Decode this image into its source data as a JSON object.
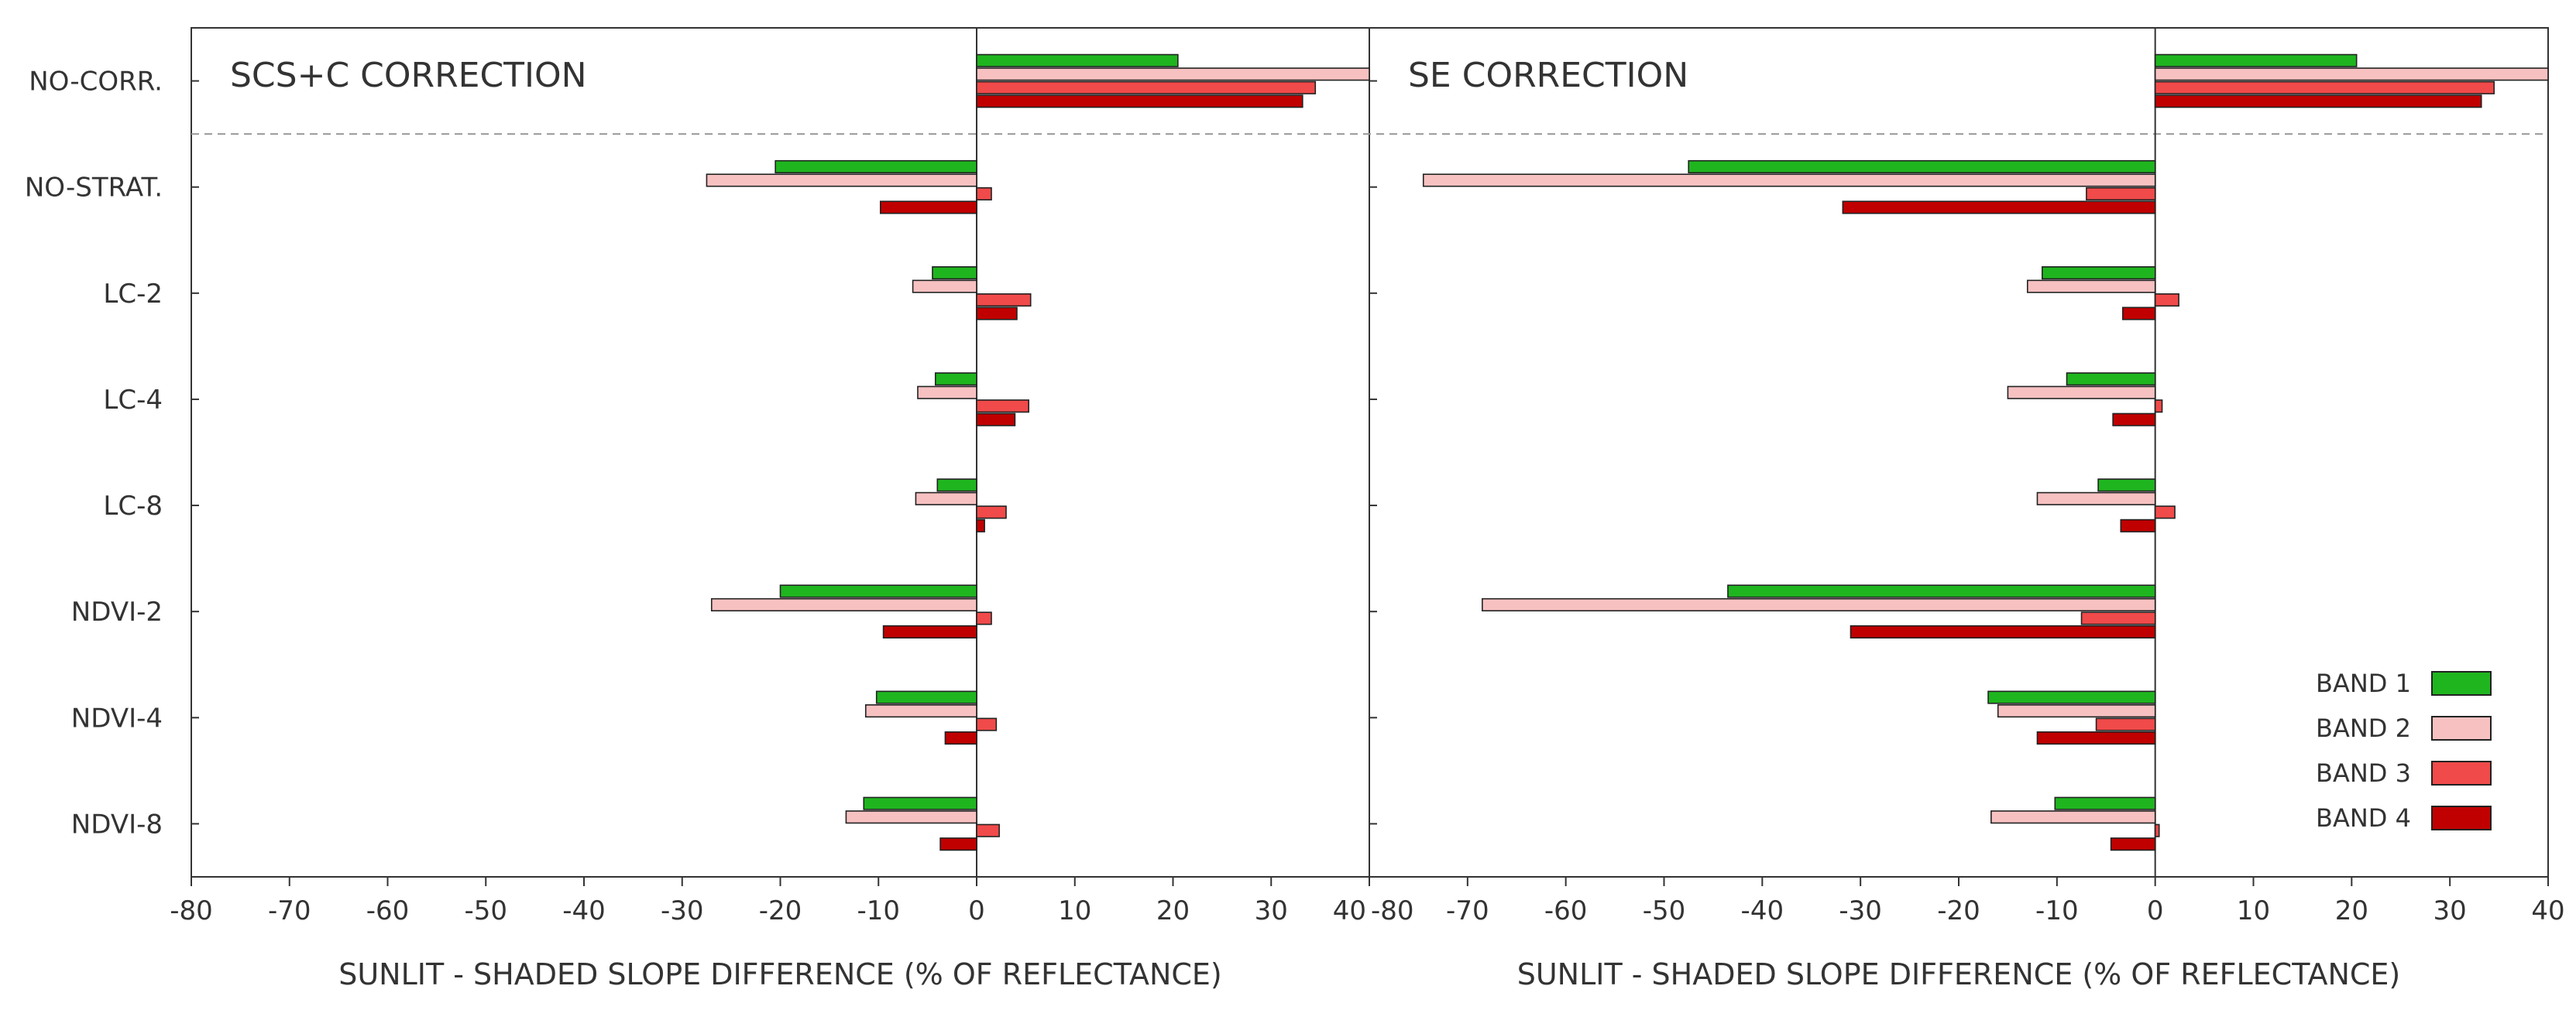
{
  "chart_data": {
    "type": "bar",
    "orientation": "horizontal",
    "categories": [
      "NO-CORR.",
      "NO-STRAT.",
      "LC-2",
      "LC-4",
      "LC-8",
      "NDVI-2",
      "NDVI-4",
      "NDVI-8"
    ],
    "xlim": [
      -80,
      40
    ],
    "xticks": [
      -80,
      -70,
      -60,
      -50,
      -40,
      -30,
      -20,
      -10,
      0,
      10,
      20,
      30,
      40
    ],
    "xticks_last_panel": [
      -80,
      -70,
      -60,
      -50,
      -40,
      -30,
      -20,
      -10,
      0,
      10,
      20,
      30,
      40
    ],
    "legend": {
      "placement": "bottom-right",
      "entries": [
        {
          "label": "BAND 1",
          "color": "#1fb51f"
        },
        {
          "label": "BAND 2",
          "color": "#f7c1c1"
        },
        {
          "label": "BAND 3",
          "color": "#f04a4a"
        },
        {
          "label": "BAND 4",
          "color": "#c00000"
        }
      ]
    },
    "panels": [
      {
        "title": "SCS+C CORRECTION",
        "xlabel": "SUNLIT - SHADED SLOPE DIFFERENCE (% OF REFLECTANCE)",
        "series": [
          {
            "name": "BAND 1",
            "values": [
              20.5,
              -20.5,
              -4.5,
              -4.2,
              -4.0,
              -20.0,
              -10.2,
              -11.5
            ]
          },
          {
            "name": "BAND 2",
            "values": [
              40,
              -27.5,
              -6.5,
              -6.0,
              -6.2,
              -27.0,
              -11.3,
              -13.3
            ]
          },
          {
            "name": "BAND 3",
            "values": [
              34.5,
              1.5,
              5.5,
              5.3,
              3.0,
              1.5,
              2.0,
              2.3
            ]
          },
          {
            "name": "BAND 4",
            "values": [
              33.2,
              -9.8,
              4.1,
              3.9,
              0.8,
              -9.5,
              -3.2,
              -3.7
            ]
          }
        ]
      },
      {
        "title": "SE CORRECTION",
        "xlabel": "SUNLIT - SHADED SLOPE DIFFERENCE (% OF REFLECTANCE)",
        "series": [
          {
            "name": "BAND 1",
            "values": [
              20.5,
              -47.5,
              -11.5,
              -9.0,
              -5.8,
              -43.5,
              -17.0,
              -10.2
            ]
          },
          {
            "name": "BAND 2",
            "values": [
              40,
              -74.5,
              -13.0,
              -15.0,
              -12.0,
              -68.5,
              -16.0,
              -16.7
            ]
          },
          {
            "name": "BAND 3",
            "values": [
              34.5,
              -7.0,
              2.4,
              0.7,
              2.0,
              -7.5,
              -6.0,
              0.4
            ]
          },
          {
            "name": "BAND 4",
            "values": [
              33.2,
              -31.8,
              -3.3,
              -4.3,
              -3.5,
              -31.0,
              -12.0,
              -4.5
            ]
          }
        ]
      }
    ],
    "grid": false
  }
}
